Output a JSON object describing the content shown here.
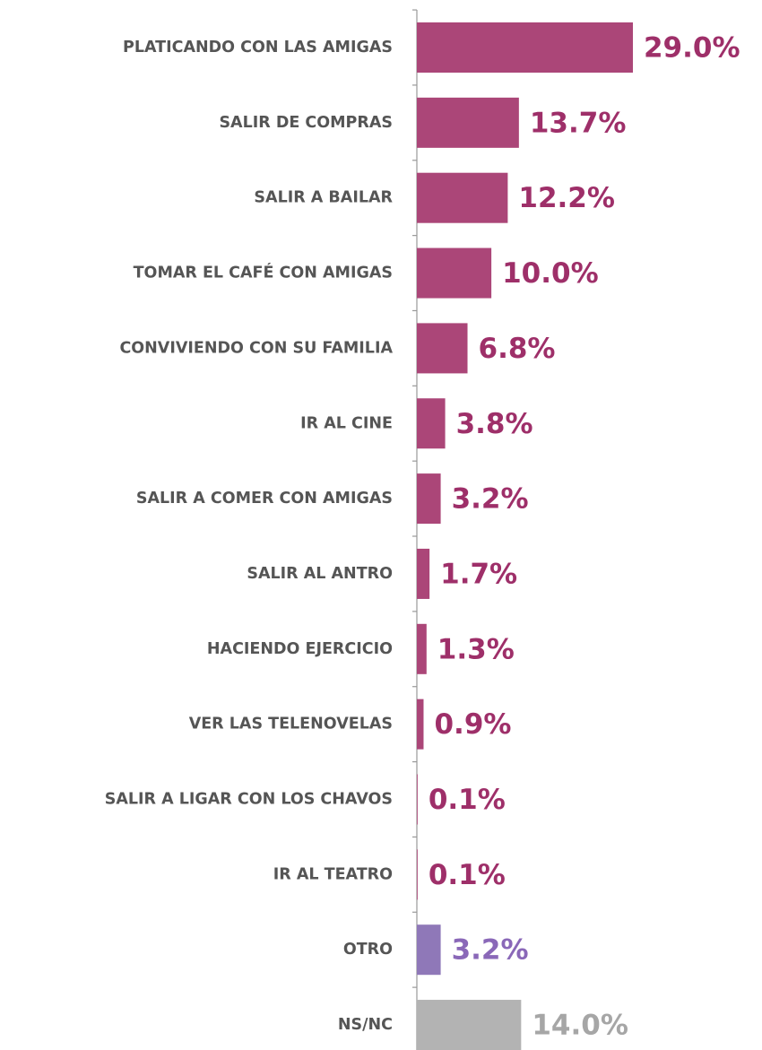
{
  "chart_data": {
    "type": "bar",
    "orientation": "horizontal",
    "categories": [
      "PLATICANDO CON LAS AMIGAS",
      "SALIR DE COMPRAS",
      "SALIR A BAILAR",
      "TOMAR EL CAFÉ CON AMIGAS",
      "CONVIVIENDO CON SU FAMILIA",
      "IR AL CINE",
      "SALIR A COMER CON AMIGAS",
      "SALIR AL ANTRO",
      "HACIENDO EJERCICIO",
      "VER LAS TELENOVELAS",
      "SALIR A LIGAR CON LOS CHAVOS",
      "IR AL TEATRO",
      "OTRO",
      "NS/NC"
    ],
    "values": [
      29.0,
      13.7,
      12.2,
      10.0,
      6.8,
      3.8,
      3.2,
      1.7,
      1.3,
      0.9,
      0.1,
      0.1,
      3.2,
      14.0
    ],
    "value_labels": [
      "29.0%",
      "13.7%",
      "12.2%",
      "10.0%",
      "6.8%",
      "3.8%",
      "3.2%",
      "1.7%",
      "1.3%",
      "0.9%",
      "0.1%",
      "0.1%",
      "3.2%",
      "14.0%"
    ],
    "colors": [
      "#ab4678",
      "#ab4678",
      "#ab4678",
      "#ab4678",
      "#ab4678",
      "#ab4678",
      "#ab4678",
      "#ab4678",
      "#ab4678",
      "#ab4678",
      "#ab4678",
      "#ab4678",
      "#8f78b8",
      "#b3b3b3"
    ],
    "label_colors": [
      "#9e2f69",
      "#9e2f69",
      "#9e2f69",
      "#9e2f69",
      "#9e2f69",
      "#9e2f69",
      "#9e2f69",
      "#9e2f69",
      "#9e2f69",
      "#9e2f69",
      "#9e2f69",
      "#9e2f69",
      "#8a68b8",
      "#a6a6a6"
    ]
  }
}
